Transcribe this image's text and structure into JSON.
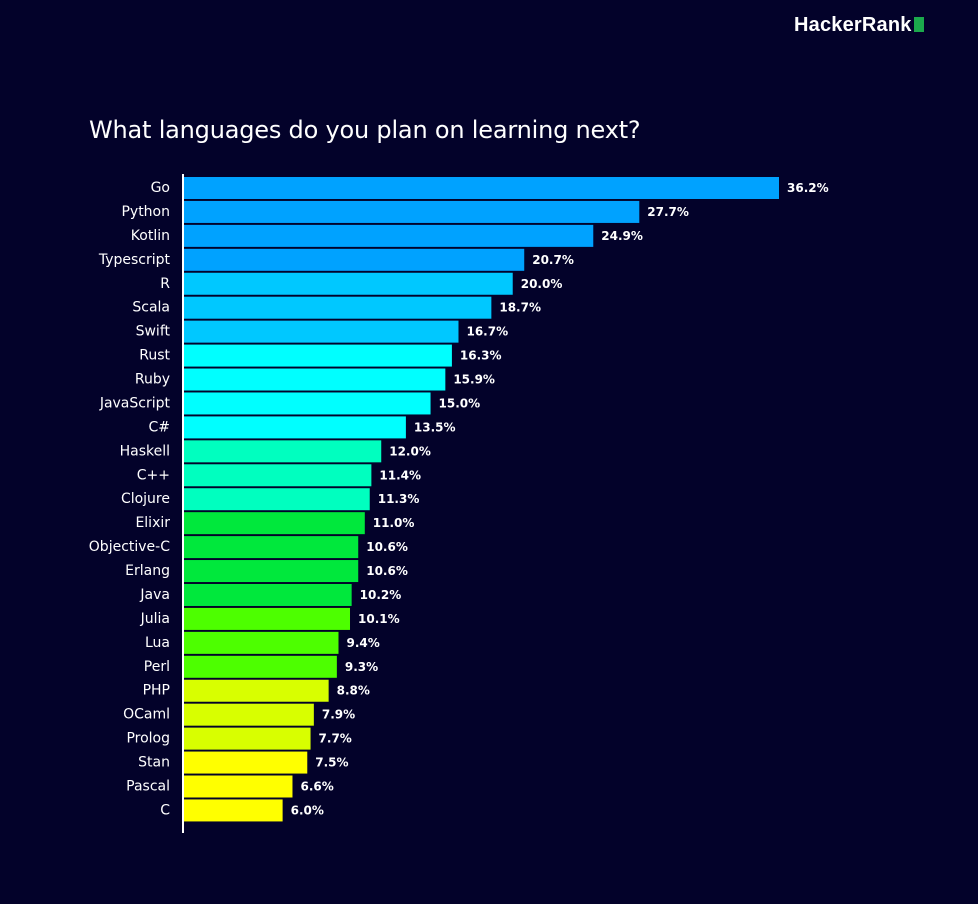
{
  "brand": {
    "name": "HackerRank",
    "mark_color": "#1ba94c"
  },
  "chart_data": {
    "type": "bar",
    "orientation": "horizontal",
    "title": "What languages do you plan on learning next?",
    "xlabel": "",
    "ylabel": "",
    "xlim": [
      0,
      36.2
    ],
    "grid": false,
    "legend": "none",
    "value_suffix": "%",
    "categories": [
      "Go",
      "Python",
      "Kotlin",
      "Typescript",
      "R",
      "Scala",
      "Swift",
      "Rust",
      "Ruby",
      "JavaScript",
      "C#",
      "Haskell",
      "C++",
      "Clojure",
      "Elixir",
      "Objective-C",
      "Erlang",
      "Java",
      "Julia",
      "Lua",
      "Perl",
      "PHP",
      "OCaml",
      "Prolog",
      "Stan",
      "Pascal",
      "C"
    ],
    "values": [
      36.2,
      27.7,
      24.9,
      20.7,
      20.0,
      18.7,
      16.7,
      16.3,
      15.9,
      15.0,
      13.5,
      12.0,
      11.4,
      11.3,
      11.0,
      10.6,
      10.6,
      10.2,
      10.1,
      9.4,
      9.3,
      8.8,
      7.9,
      7.7,
      7.5,
      6.6,
      6.0
    ],
    "value_labels": [
      "36.2%",
      "27.7%",
      "24.9%",
      "20.7%",
      "20.0%",
      "18.7%",
      "16.7%",
      "16.3%",
      "15.9%",
      "15.0%",
      "13.5%",
      "12.0%",
      "11.4%",
      "11.3%",
      "11.0%",
      "10.6%",
      "10.6%",
      "10.2%",
      "10.1%",
      "9.4%",
      "9.3%",
      "8.8%",
      "7.9%",
      "7.7%",
      "7.5%",
      "6.6%",
      "6.0%"
    ],
    "colors": [
      "#00a2ff",
      "#00a2ff",
      "#00a2ff",
      "#00a2ff",
      "#00c8ff",
      "#00c8ff",
      "#00c8ff",
      "#00ffff",
      "#00ffff",
      "#00ffff",
      "#00ffff",
      "#00ffbf",
      "#00ffbf",
      "#00ffbf",
      "#00e83c",
      "#00e83c",
      "#00e83c",
      "#00e83c",
      "#4dff00",
      "#4dff00",
      "#4dff00",
      "#d8ff00",
      "#d8ff00",
      "#d8ff00",
      "#ffff00",
      "#ffff00",
      "#ffff00"
    ]
  }
}
